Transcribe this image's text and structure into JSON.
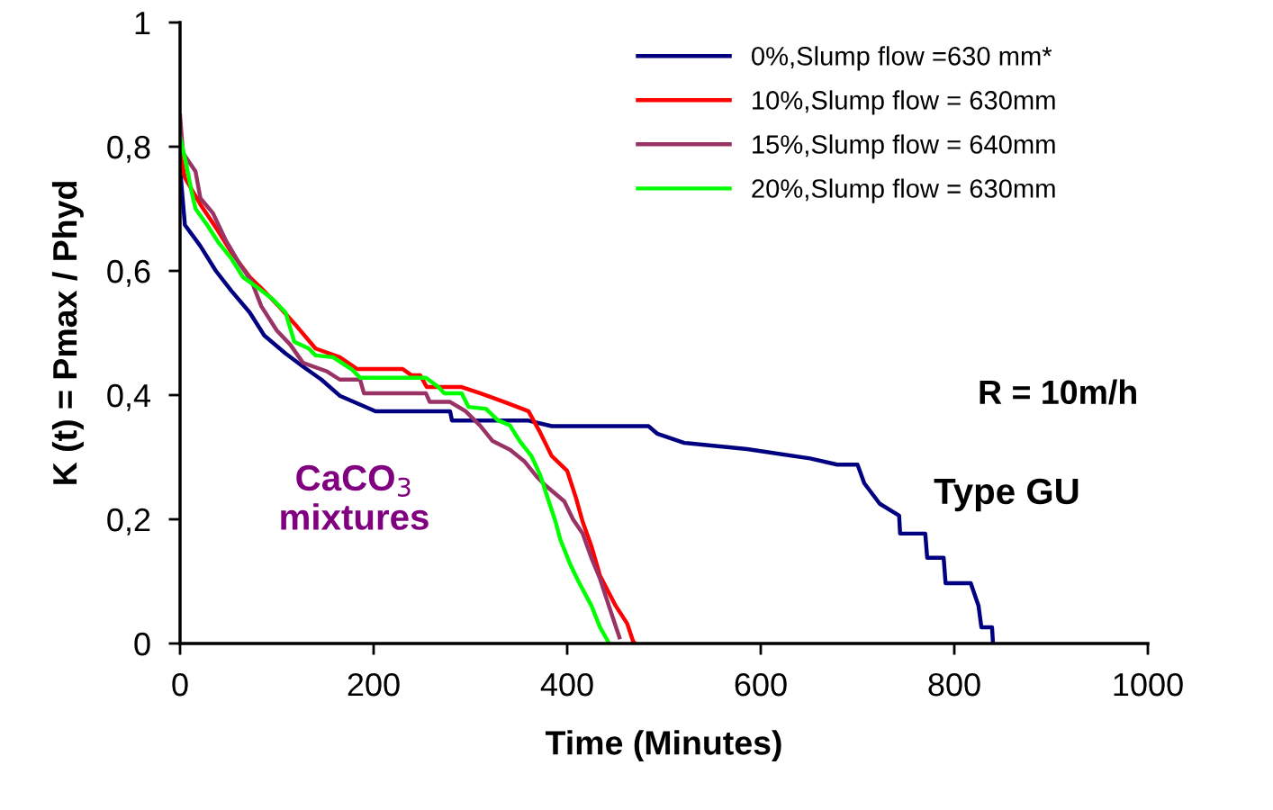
{
  "chart_data": {
    "type": "line",
    "xlabel": "Time (Minutes)",
    "ylabel": "K (t) = Pmax / Phyd",
    "xlim": [
      0,
      1000
    ],
    "xticks": [
      0,
      200,
      400,
      600,
      800,
      1000
    ],
    "ylim": [
      0,
      1
    ],
    "yticks": [
      0,
      {
        "value": 0.2,
        "label": "0,2"
      },
      {
        "value": 0.4,
        "label": "0,4"
      },
      {
        "value": 0.6,
        "label": "0,6"
      },
      {
        "value": 0.8,
        "label": "0,8"
      },
      1
    ],
    "legend": "top right",
    "grid": false,
    "marker": "none",
    "line_style": "solid",
    "annotations": [
      "R = 10m/h",
      "Type GU",
      "CaCO$_{3}$\nmixtures"
    ],
    "series": [
      {
        "name": "0%,Slump flow =630 mm*",
        "color": "#000080",
        "x": [
          0,
          5,
          21,
          37,
          53,
          72,
          87,
          109,
          127,
          146,
          165,
          202,
          279,
          281,
          360,
          384,
          484,
          493,
          521,
          586,
          651,
          679,
          700,
          707,
          723,
          743,
          744,
          770,
          772,
          789,
          791,
          817,
          825,
          828,
          839,
          840
        ],
        "values": [
          0.765,
          0.674,
          0.64,
          0.6,
          0.568,
          0.533,
          0.496,
          0.467,
          0.446,
          0.425,
          0.399,
          0.374,
          0.374,
          0.359,
          0.359,
          0.35,
          0.35,
          0.338,
          0.323,
          0.313,
          0.298,
          0.288,
          0.288,
          0.258,
          0.225,
          0.206,
          0.177,
          0.177,
          0.138,
          0.138,
          0.097,
          0.097,
          0.061,
          0.026,
          0.026,
          0
        ]
      },
      {
        "name": "10%,Slump flow = 630mm",
        "color": "#ff0000",
        "x": [
          0,
          5,
          21,
          37,
          53,
          72,
          84,
          102,
          121,
          140,
          165,
          183,
          230,
          239,
          248,
          255,
          291,
          310,
          335,
          360,
          372,
          384,
          400,
          409,
          416,
          425,
          434,
          450,
          462,
          468,
          470
        ],
        "values": [
          0.79,
          0.75,
          0.707,
          0.67,
          0.63,
          0.59,
          0.572,
          0.543,
          0.51,
          0.475,
          0.461,
          0.442,
          0.442,
          0.432,
          0.432,
          0.413,
          0.413,
          0.403,
          0.389,
          0.374,
          0.34,
          0.302,
          0.278,
          0.235,
          0.196,
          0.157,
          0.109,
          0.061,
          0.032,
          0.004,
          0
        ]
      },
      {
        "name": "15%,Slump flow = 640mm",
        "color": "#993366",
        "x": [
          0,
          3,
          16,
          21,
          34,
          47,
          62,
          74,
          84,
          100,
          114,
          127,
          152,
          165,
          186,
          190,
          254,
          258,
          279,
          295,
          310,
          323,
          341,
          356,
          369,
          378,
          397,
          406,
          416,
          425,
          434,
          443,
          454
        ],
        "values": [
          0.85,
          0.79,
          0.76,
          0.717,
          0.693,
          0.65,
          0.61,
          0.583,
          0.543,
          0.504,
          0.481,
          0.452,
          0.438,
          0.425,
          0.425,
          0.403,
          0.403,
          0.389,
          0.389,
          0.374,
          0.351,
          0.326,
          0.312,
          0.293,
          0.268,
          0.254,
          0.229,
          0.2,
          0.177,
          0.138,
          0.104,
          0.061,
          0.01
        ]
      },
      {
        "name": "20%,Slump flow = 630mm",
        "color": "#00ff00",
        "x": [
          0,
          6,
          12,
          16,
          28,
          40,
          53,
          65,
          81,
          96,
          109,
          118,
          133,
          140,
          158,
          177,
          186,
          254,
          267,
          273,
          291,
          298,
          316,
          328,
          341,
          351,
          363,
          372,
          381,
          388,
          393,
          403,
          412,
          425,
          434,
          442,
          443
        ],
        "values": [
          0.816,
          0.775,
          0.727,
          0.7,
          0.674,
          0.645,
          0.62,
          0.59,
          0.572,
          0.554,
          0.533,
          0.486,
          0.475,
          0.464,
          0.461,
          0.442,
          0.428,
          0.428,
          0.413,
          0.403,
          0.403,
          0.381,
          0.378,
          0.36,
          0.351,
          0.326,
          0.302,
          0.272,
          0.229,
          0.196,
          0.167,
          0.128,
          0.099,
          0.061,
          0.026,
          0.004,
          0
        ]
      }
    ]
  }
}
